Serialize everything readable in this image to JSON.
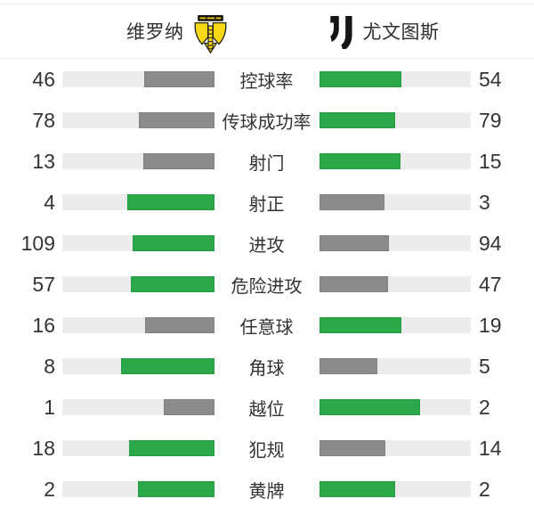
{
  "header": {
    "home_team": {
      "name": "维罗纳",
      "logo": "hellas-verona-crest"
    },
    "away_team": {
      "name": "尤文图斯",
      "logo": "juventus-j-logo"
    }
  },
  "colors": {
    "leading_bar": "#2aa84a",
    "trailing_bar": "#8b8b8b",
    "bar_track": "#ececec",
    "divider": "#ececec",
    "text": "#343434",
    "verona_yellow": "#f7d917",
    "logo_black": "#141414",
    "background": "#ffffff"
  },
  "stats": {
    "rows": [
      {
        "label": "控球率",
        "home": 46,
        "away": 54
      },
      {
        "label": "传球成功率",
        "home": 78,
        "away": 79
      },
      {
        "label": "射门",
        "home": 13,
        "away": 15
      },
      {
        "label": "射正",
        "home": 4,
        "away": 3
      },
      {
        "label": "进攻",
        "home": 109,
        "away": 94
      },
      {
        "label": "危险进攻",
        "home": 57,
        "away": 47
      },
      {
        "label": "任意球",
        "home": 16,
        "away": 19
      },
      {
        "label": "角球",
        "home": 8,
        "away": 5
      },
      {
        "label": "越位",
        "home": 1,
        "away": 2
      },
      {
        "label": "犯规",
        "home": 18,
        "away": 14
      },
      {
        "label": "黄牌",
        "home": 2,
        "away": 2
      }
    ]
  },
  "chart_data": {
    "type": "bar",
    "orientation": "horizontal",
    "categories": [
      "控球率",
      "传球成功率",
      "射门",
      "射正",
      "进攻",
      "危险进攻",
      "任意球",
      "角球",
      "越位",
      "犯规",
      "黄牌"
    ],
    "series": [
      {
        "name": "维罗纳",
        "values": [
          46,
          78,
          13,
          4,
          109,
          57,
          16,
          8,
          1,
          18,
          2
        ]
      },
      {
        "name": "尤文图斯",
        "values": [
          54,
          79,
          15,
          3,
          94,
          47,
          19,
          5,
          2,
          14,
          2
        ]
      }
    ],
    "layout": "paired bars growing from center; fill = value/(home+away); leading side green, trailing side gray, tie both green"
  }
}
